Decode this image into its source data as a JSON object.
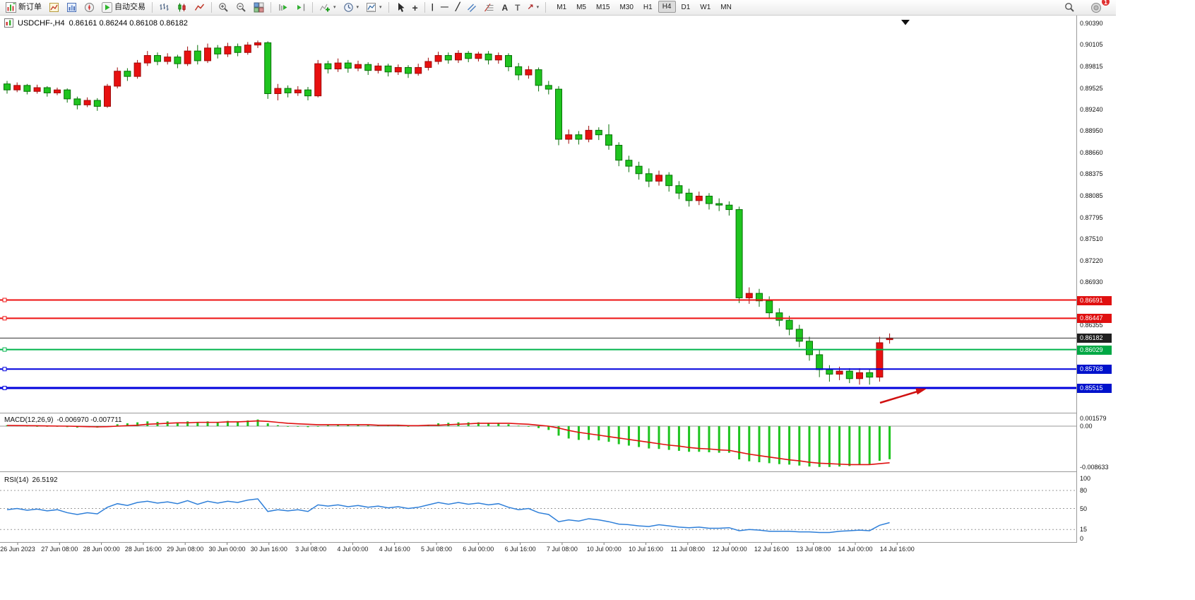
{
  "toolbar": {
    "new_order_label": "新订单",
    "autotrading_label": "自动交易",
    "timeframes": [
      "M1",
      "M5",
      "M15",
      "M30",
      "H1",
      "H4",
      "D1",
      "W1",
      "MN"
    ],
    "active_timeframe": "H4",
    "notification_count": "1",
    "glyphs": {
      "dropdown": "▾",
      "crosshair": "+",
      "vertical_line": "|",
      "horizontal_line": "—",
      "trendline": "╱",
      "text_tool": "A",
      "label_tool": "T",
      "arrows_tool": "↗"
    }
  },
  "chart": {
    "symbol_title": "USDCHF-,H4",
    "ohlc_text": "0.86161 0.86244 0.86108 0.86182",
    "price_axis_labels": [
      "0.90390",
      "0.90105",
      "0.89815",
      "0.89525",
      "0.89240",
      "0.88950",
      "0.88660",
      "0.88375",
      "0.88085",
      "0.87795",
      "0.87510",
      "0.87220",
      "0.86930",
      "0.86355"
    ],
    "price_badges": [
      {
        "text": "0.86691",
        "price": 0.86691,
        "color": "#e01010"
      },
      {
        "text": "0.86447",
        "price": 0.86447,
        "color": "#e01010"
      },
      {
        "text": "0.86182",
        "price": 0.86182,
        "color": "#1f1f1f"
      },
      {
        "text": "0.86029",
        "price": 0.86029,
        "color": "#00a844"
      },
      {
        "text": "0.85768",
        "price": 0.85768,
        "color": "#0012cc"
      },
      {
        "text": "0.85515",
        "price": 0.85515,
        "color": "#0012cc"
      }
    ],
    "macd_label": "MACD(12,26,9)",
    "macd_values_text": "-0.006970 -0.007711",
    "rsi_label": "RSI(14)",
    "rsi_value_text": "26.5192",
    "macd_axis": [
      {
        "text": "0.001579",
        "value": 0.001579
      },
      {
        "text": "0.00",
        "value": 0
      },
      {
        "text": "-0.008633",
        "value": -0.008633
      }
    ],
    "rsi_axis": [
      {
        "text": "100",
        "value": 100
      },
      {
        "text": "80",
        "value": 80
      },
      {
        "text": "50",
        "value": 50
      },
      {
        "text": "15",
        "value": 15
      },
      {
        "text": "0",
        "value": 0
      }
    ],
    "time_labels": [
      "26 Jun 2023",
      "27 Jun 08:00",
      "28 Jun 00:00",
      "28 Jun 16:00",
      "29 Jun 08:00",
      "30 Jun 00:00",
      "30 Jun 16:00",
      "3 Jul 08:00",
      "4 Jul 00:00",
      "4 Jul 16:00",
      "5 Jul 08:00",
      "6 Jul 00:00",
      "6 Jul 16:00",
      "7 Jul 08:00",
      "10 Jul 00:00",
      "10 Jul 16:00",
      "11 Jul 08:00",
      "12 Jul 00:00",
      "12 Jul 16:00",
      "13 Jul 08:00",
      "14 Jul 00:00",
      "14 Jul 16:00"
    ]
  },
  "chart_data": {
    "type": "candlestick",
    "symbol": "USDCHF-",
    "timeframe": "H4",
    "up_color": "#e81010",
    "down_color": "#1fc41f",
    "price_range": [
      0.85515,
      0.9039
    ],
    "candles": [
      [
        0.8958,
        0.8962,
        0.8945,
        0.895
      ],
      [
        0.895,
        0.896,
        0.8947,
        0.8956
      ],
      [
        0.8956,
        0.8958,
        0.8944,
        0.8948
      ],
      [
        0.8948,
        0.8957,
        0.8945,
        0.8953
      ],
      [
        0.8953,
        0.8955,
        0.8941,
        0.8946
      ],
      [
        0.8946,
        0.8953,
        0.8943,
        0.895
      ],
      [
        0.895,
        0.8952,
        0.8933,
        0.8938
      ],
      [
        0.8938,
        0.8941,
        0.8924,
        0.893
      ],
      [
        0.893,
        0.894,
        0.8927,
        0.8936
      ],
      [
        0.8936,
        0.8939,
        0.8922,
        0.8928
      ],
      [
        0.8928,
        0.8958,
        0.8926,
        0.8955
      ],
      [
        0.8955,
        0.898,
        0.8952,
        0.8975
      ],
      [
        0.8975,
        0.8979,
        0.8962,
        0.8968
      ],
      [
        0.8968,
        0.899,
        0.8965,
        0.8986
      ],
      [
        0.8986,
        0.9002,
        0.8982,
        0.8996
      ],
      [
        0.8996,
        0.9,
        0.8983,
        0.8988
      ],
      [
        0.8988,
        0.8999,
        0.8984,
        0.8994
      ],
      [
        0.8994,
        0.8997,
        0.8979,
        0.8985
      ],
      [
        0.8985,
        0.9008,
        0.8982,
        0.9002
      ],
      [
        0.9002,
        0.901,
        0.8984,
        0.8989
      ],
      [
        0.8989,
        0.9012,
        0.8986,
        0.9006
      ],
      [
        0.9006,
        0.901,
        0.8992,
        0.8998
      ],
      [
        0.8998,
        0.9013,
        0.8994,
        0.9008
      ],
      [
        0.9008,
        0.9012,
        0.8995,
        0.9
      ],
      [
        0.9,
        0.9014,
        0.8997,
        0.901
      ],
      [
        0.901,
        0.9016,
        0.9006,
        0.9013
      ],
      [
        0.9013,
        0.9015,
        0.8938,
        0.8945
      ],
      [
        0.8945,
        0.8958,
        0.8936,
        0.8952
      ],
      [
        0.8952,
        0.8956,
        0.894,
        0.8946
      ],
      [
        0.8946,
        0.8955,
        0.8942,
        0.895
      ],
      [
        0.895,
        0.8954,
        0.8936,
        0.8942
      ],
      [
        0.8942,
        0.899,
        0.894,
        0.8985
      ],
      [
        0.8985,
        0.8989,
        0.8972,
        0.8978
      ],
      [
        0.8978,
        0.8992,
        0.8974,
        0.8986
      ],
      [
        0.8986,
        0.899,
        0.8973,
        0.8979
      ],
      [
        0.8979,
        0.8989,
        0.8975,
        0.8984
      ],
      [
        0.8984,
        0.8987,
        0.897,
        0.8976
      ],
      [
        0.8976,
        0.8986,
        0.8972,
        0.8982
      ],
      [
        0.8982,
        0.8985,
        0.8968,
        0.8974
      ],
      [
        0.8974,
        0.8984,
        0.897,
        0.898
      ],
      [
        0.898,
        0.8983,
        0.8966,
        0.8972
      ],
      [
        0.8972,
        0.8985,
        0.8969,
        0.898
      ],
      [
        0.898,
        0.8993,
        0.8976,
        0.8988
      ],
      [
        0.8988,
        0.9001,
        0.8984,
        0.8996
      ],
      [
        0.8996,
        0.9,
        0.8985,
        0.899
      ],
      [
        0.899,
        0.9003,
        0.8986,
        0.8999
      ],
      [
        0.8999,
        0.9002,
        0.8987,
        0.8992
      ],
      [
        0.8992,
        0.9001,
        0.8988,
        0.8998
      ],
      [
        0.8998,
        0.9002,
        0.8984,
        0.899
      ],
      [
        0.899,
        0.9,
        0.8985,
        0.8996
      ],
      [
        0.8996,
        0.8999,
        0.8975,
        0.8981
      ],
      [
        0.8981,
        0.8986,
        0.8963,
        0.897
      ],
      [
        0.897,
        0.8982,
        0.8965,
        0.8977
      ],
      [
        0.8977,
        0.898,
        0.8948,
        0.8956
      ],
      [
        0.8956,
        0.8962,
        0.8944,
        0.8951
      ],
      [
        0.8951,
        0.8955,
        0.8876,
        0.8884
      ],
      [
        0.8884,
        0.8897,
        0.8878,
        0.889
      ],
      [
        0.889,
        0.8895,
        0.8877,
        0.8884
      ],
      [
        0.8884,
        0.8902,
        0.888,
        0.8896
      ],
      [
        0.8896,
        0.89,
        0.8883,
        0.889
      ],
      [
        0.889,
        0.8904,
        0.887,
        0.8876
      ],
      [
        0.8876,
        0.888,
        0.8848,
        0.8856
      ],
      [
        0.8856,
        0.8862,
        0.884,
        0.8848
      ],
      [
        0.8848,
        0.8854,
        0.883,
        0.8838
      ],
      [
        0.8838,
        0.8845,
        0.882,
        0.8828
      ],
      [
        0.8828,
        0.8842,
        0.8822,
        0.8836
      ],
      [
        0.8836,
        0.884,
        0.8814,
        0.8822
      ],
      [
        0.8822,
        0.8828,
        0.8804,
        0.8812
      ],
      [
        0.8812,
        0.8818,
        0.8794,
        0.8802
      ],
      [
        0.8802,
        0.8814,
        0.8796,
        0.8808
      ],
      [
        0.8808,
        0.8812,
        0.879,
        0.8798
      ],
      [
        0.8798,
        0.8805,
        0.8788,
        0.8796
      ],
      [
        0.8796,
        0.8801,
        0.8782,
        0.879
      ],
      [
        0.879,
        0.8794,
        0.8665,
        0.8672
      ],
      [
        0.8672,
        0.8686,
        0.8664,
        0.8678
      ],
      [
        0.8678,
        0.8684,
        0.866,
        0.8668
      ],
      [
        0.8668,
        0.8674,
        0.8644,
        0.8652
      ],
      [
        0.8652,
        0.8658,
        0.8634,
        0.8642
      ],
      [
        0.8642,
        0.8648,
        0.8622,
        0.863
      ],
      [
        0.863,
        0.8636,
        0.8606,
        0.8614
      ],
      [
        0.8614,
        0.862,
        0.8588,
        0.8596
      ],
      [
        0.8596,
        0.8602,
        0.8566,
        0.8576
      ],
      [
        0.8576,
        0.8582,
        0.856,
        0.857
      ],
      [
        0.857,
        0.858,
        0.8562,
        0.8574
      ],
      [
        0.8574,
        0.8578,
        0.8558,
        0.8564
      ],
      [
        0.8564,
        0.8578,
        0.8556,
        0.8572
      ],
      [
        0.8572,
        0.8576,
        0.8556,
        0.8566
      ],
      [
        0.8566,
        0.862,
        0.856,
        0.8612
      ],
      [
        0.86161,
        0.86244,
        0.86108,
        0.86182
      ]
    ],
    "hlines": [
      {
        "price": 0.86691,
        "color": "#ee1111",
        "width": 2,
        "handle": true
      },
      {
        "price": 0.86447,
        "color": "#ee1111",
        "width": 2,
        "handle": true
      },
      {
        "price": 0.86182,
        "color": "#333333",
        "width": 1,
        "handle": false
      },
      {
        "price": 0.86029,
        "color": "#00b44c",
        "width": 2,
        "handle": true
      },
      {
        "price": 0.85768,
        "color": "#0000dd",
        "width": 2,
        "handle": true
      },
      {
        "price": 0.85515,
        "color": "#0000dd",
        "width": 3,
        "handle": true
      }
    ],
    "macd": {
      "params": "12,26,9",
      "main_value": -0.00697,
      "signal_value": -0.007711,
      "hist_color": "#1fc41f",
      "signal_color": "#e01010",
      "scale": [
        -0.008633,
        0.001579
      ],
      "histogram": [
        0.0002,
        0.0001,
        5e-05,
        0,
        -0.0001,
        -5e-05,
        -0.0002,
        -0.0003,
        -0.0002,
        -0.0003,
        0,
        0.0004,
        0.0006,
        0.0008,
        0.001,
        0.0009,
        0.001,
        0.0008,
        0.001,
        0.0008,
        0.001,
        0.0009,
        0.0011,
        0.001,
        0.0012,
        0.0014,
        0.0006,
        0.0002,
        0,
        -0.0001,
        -0.0002,
        0,
        0.0002,
        0.0003,
        0.0003,
        0.0003,
        0.0002,
        0.0002,
        0.0001,
        0.0001,
        0,
        0.0001,
        0.0003,
        0.0006,
        0.0007,
        0.0008,
        0.0008,
        0.0008,
        0.0007,
        0.0007,
        0.0004,
        0.0001,
        0,
        -0.0004,
        -0.0008,
        -0.002,
        -0.0026,
        -0.0029,
        -0.0029,
        -0.003,
        -0.0033,
        -0.0038,
        -0.0041,
        -0.0044,
        -0.0047,
        -0.0048,
        -0.005,
        -0.0052,
        -0.0054,
        -0.0054,
        -0.0055,
        -0.0056,
        -0.0056,
        -0.007,
        -0.0074,
        -0.0076,
        -0.0078,
        -0.008,
        -0.0081,
        -0.0083,
        -0.0085,
        -0.0086,
        -0.0086,
        -0.0085,
        -0.0084,
        -0.0082,
        -0.008,
        -0.0073,
        -0.00697
      ],
      "signal": [
        0.00015,
        0.00012,
        0.0001,
        8e-05,
        5e-05,
        2e-05,
        0,
        -5e-05,
        -0.0001,
        -0.00015,
        -0.0001,
        0,
        0.0001,
        0.0002,
        0.0004,
        0.0005,
        0.0006,
        0.0007,
        0.0007,
        0.0008,
        0.0008,
        0.0008,
        0.0009,
        0.0009,
        0.001,
        0.0011,
        0.001,
        0.0008,
        0.0006,
        0.0005,
        0.0004,
        0.0003,
        0.0003,
        0.0003,
        0.0003,
        0.0003,
        0.0003,
        0.0002,
        0.0002,
        0.0002,
        0.0001,
        0.0001,
        0.0002,
        0.0002,
        0.0003,
        0.0004,
        0.0005,
        0.0006,
        0.0006,
        0.0006,
        0.0006,
        0.0005,
        0.0004,
        0.0002,
        0,
        -0.0004,
        -0.0009,
        -0.0013,
        -0.0016,
        -0.0019,
        -0.0022,
        -0.0025,
        -0.0028,
        -0.0031,
        -0.0034,
        -0.0037,
        -0.004,
        -0.0042,
        -0.0045,
        -0.0047,
        -0.0048,
        -0.005,
        -0.0051,
        -0.0055,
        -0.0059,
        -0.0062,
        -0.0065,
        -0.0068,
        -0.0071,
        -0.0073,
        -0.0076,
        -0.0078,
        -0.0079,
        -0.008,
        -0.0081,
        -0.0081,
        -0.0081,
        -0.0079,
        -0.00771
      ]
    },
    "rsi": {
      "params": "14",
      "last_value": 26.5192,
      "color": "#2e7fd9",
      "levels": [
        80,
        50,
        15
      ],
      "values": [
        48,
        50,
        47,
        49,
        46,
        48,
        43,
        40,
        43,
        41,
        52,
        58,
        55,
        60,
        62,
        59,
        61,
        58,
        63,
        57,
        62,
        59,
        62,
        60,
        64,
        66,
        45,
        48,
        46,
        48,
        45,
        56,
        54,
        56,
        53,
        55,
        52,
        54,
        51,
        53,
        50,
        52,
        56,
        60,
        57,
        60,
        57,
        59,
        56,
        58,
        52,
        48,
        50,
        43,
        40,
        28,
        31,
        29,
        33,
        31,
        28,
        24,
        23,
        21,
        20,
        23,
        21,
        19,
        18,
        19,
        17,
        17,
        18,
        13,
        15,
        14,
        12,
        12,
        12,
        11,
        11,
        10,
        10,
        12,
        13,
        14,
        13,
        22,
        26.5
      ]
    },
    "annotations": [
      {
        "type": "arrow",
        "color": "#d01010",
        "note": "red up-right arrow pointing toward 0.85768 support line"
      },
      {
        "type": "triangle-marker",
        "color": "#111111",
        "note": "small black down triangle at chart top"
      }
    ]
  }
}
